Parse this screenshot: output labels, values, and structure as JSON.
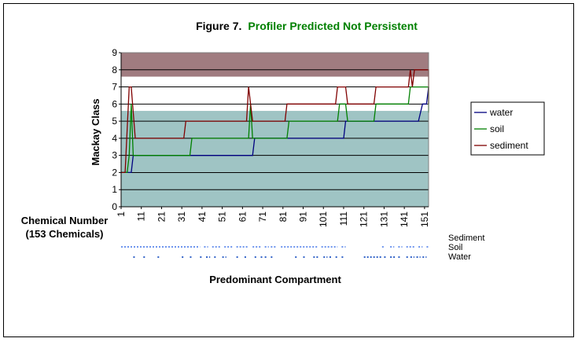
{
  "chart_data": {
    "type": "line",
    "title_prefix": "Figure 7.",
    "title_main": "Profiler Predicted Not Persistent",
    "title_main_color": "#008000",
    "xlabel_line1": "Chemical Number",
    "xlabel_line2": "(153 Chemicals)",
    "ylabel": "Mackay Class",
    "ylim": [
      0,
      9
    ],
    "xlim": [
      1,
      153
    ],
    "yticks": [
      "0",
      "1",
      "2",
      "3",
      "4",
      "5",
      "6",
      "7",
      "8",
      "9"
    ],
    "xticks": [
      "1",
      "11",
      "21",
      "31",
      "41",
      "51",
      "61",
      "71",
      "81",
      "91",
      "101",
      "111",
      "121",
      "131",
      "141",
      "151"
    ],
    "bands": [
      {
        "from": 0,
        "to": 5.6,
        "color": "#9FC4C4"
      },
      {
        "from": 7.6,
        "to": 9,
        "color": "#A07C80"
      }
    ],
    "legend": {
      "position": "right"
    },
    "series": [
      {
        "name": "water",
        "color": "#000080",
        "points": [
          [
            1,
            2
          ],
          [
            6,
            2
          ],
          [
            7,
            3
          ],
          [
            62,
            3
          ],
          [
            66,
            3
          ],
          [
            67,
            4
          ],
          [
            108,
            4
          ],
          [
            111,
            4
          ],
          [
            112,
            5
          ],
          [
            143,
            5
          ],
          [
            148,
            5
          ],
          [
            150,
            6
          ],
          [
            152,
            6
          ],
          [
            153,
            7
          ]
        ]
      },
      {
        "name": "soil",
        "color": "#008000",
        "points": [
          [
            1,
            2
          ],
          [
            4,
            2
          ],
          [
            5,
            3
          ],
          [
            6,
            6
          ],
          [
            7,
            3
          ],
          [
            35,
            3
          ],
          [
            36,
            4
          ],
          [
            64,
            4
          ],
          [
            65,
            6
          ],
          [
            66,
            4
          ],
          [
            83,
            4
          ],
          [
            84,
            5
          ],
          [
            108,
            5
          ],
          [
            109,
            6
          ],
          [
            112,
            6
          ],
          [
            113,
            5
          ],
          [
            126,
            5
          ],
          [
            127,
            6
          ],
          [
            143,
            6
          ],
          [
            144,
            7
          ],
          [
            153,
            7
          ],
          [
            153,
            5.5
          ]
        ]
      },
      {
        "name": "sediment",
        "color": "#800000",
        "points": [
          [
            1,
            2
          ],
          [
            3,
            2
          ],
          [
            5,
            7
          ],
          [
            6,
            7
          ],
          [
            8,
            4
          ],
          [
            32,
            4
          ],
          [
            33,
            5
          ],
          [
            63,
            5
          ],
          [
            64,
            7
          ],
          [
            66,
            5
          ],
          [
            82,
            5
          ],
          [
            83,
            6
          ],
          [
            107,
            6
          ],
          [
            108,
            7
          ],
          [
            112,
            7
          ],
          [
            113,
            6
          ],
          [
            126,
            6
          ],
          [
            127,
            7
          ],
          [
            143,
            7
          ],
          [
            144,
            8
          ],
          [
            145,
            7
          ],
          [
            146,
            8
          ],
          [
            153,
            8
          ],
          [
            153,
            6
          ]
        ]
      }
    ],
    "compartment_title": "Predominant Compartment",
    "compartments": [
      {
        "name": "Sediment",
        "color": "#6F96EE",
        "segments": [
          [
            1,
            40
          ],
          [
            42,
            44
          ],
          [
            46,
            50
          ],
          [
            52,
            56
          ],
          [
            58,
            64
          ],
          [
            66,
            70
          ],
          [
            72,
            74
          ],
          [
            75,
            78
          ],
          [
            80,
            98
          ],
          [
            100,
            108
          ],
          [
            110,
            112
          ],
          [
            130,
            131
          ],
          [
            134,
            136
          ],
          [
            138,
            140
          ],
          [
            142,
            146
          ],
          [
            148,
            150
          ],
          [
            152,
            153
          ]
        ]
      },
      {
        "name": "Soil",
        "color": "#6F96EE",
        "segments": []
      },
      {
        "name": "Water",
        "color": "#3565C8",
        "segments": [
          [
            7,
            8
          ],
          [
            12,
            13
          ],
          [
            19,
            20
          ],
          [
            31,
            32
          ],
          [
            35,
            36
          ],
          [
            40,
            41
          ],
          [
            43,
            45
          ],
          [
            47,
            48
          ],
          [
            51,
            53
          ],
          [
            58,
            59
          ],
          [
            62,
            63
          ],
          [
            67,
            68
          ],
          [
            70,
            71
          ],
          [
            72,
            73
          ],
          [
            75,
            76
          ],
          [
            87,
            88
          ],
          [
            91,
            92
          ],
          [
            96,
            99
          ],
          [
            101,
            103
          ],
          [
            104,
            105
          ],
          [
            107,
            108
          ],
          [
            110,
            111
          ],
          [
            121,
            130
          ],
          [
            131,
            132
          ],
          [
            134,
            137
          ],
          [
            138,
            139
          ],
          [
            142,
            143
          ],
          [
            144,
            146
          ],
          [
            147,
            149
          ],
          [
            150,
            152
          ]
        ]
      }
    ]
  }
}
